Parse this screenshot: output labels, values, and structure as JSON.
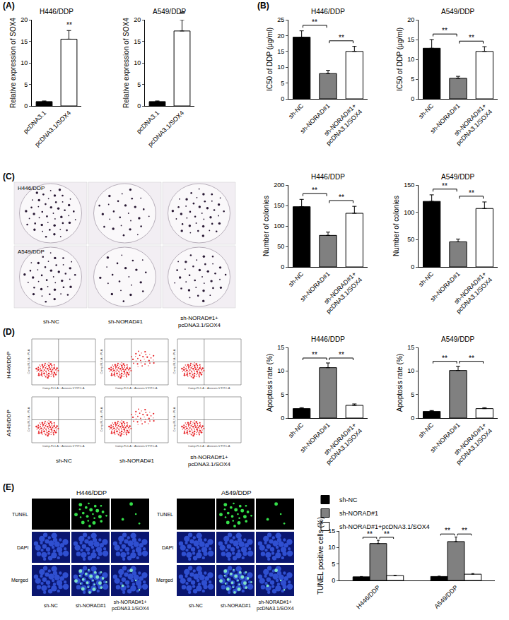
{
  "chart_data": [
    {
      "type": "bar",
      "title": "H446/DDP",
      "y_label": "Relative expression of SOX4",
      "categories": [
        "pcDNA3.1",
        "pcDNA3.1/SOX4"
      ],
      "values": [
        1.0,
        15.5
      ],
      "errors": [
        0.15,
        2.0
      ],
      "colors": [
        "#000000",
        "#ffffff"
      ],
      "ylim": [
        0,
        20
      ],
      "yticks": [
        0,
        5,
        10,
        15,
        20
      ],
      "significance": [
        {
          "at": 1,
          "label": "**"
        }
      ]
    },
    {
      "type": "bar",
      "title": "A549/DDP",
      "y_label": "Relative expression of SOX4",
      "categories": [
        "pcDNA3.1",
        "pcDNA3.1/SOX4"
      ],
      "values": [
        1.0,
        17.4
      ],
      "errors": [
        0.15,
        2.6
      ],
      "colors": [
        "#000000",
        "#ffffff"
      ],
      "ylim": [
        0,
        20
      ],
      "yticks": [
        0,
        5,
        10,
        15,
        20
      ],
      "significance": [
        {
          "at": 1,
          "label": "**"
        }
      ]
    },
    {
      "type": "bar",
      "title": "H446/DDP",
      "y_label": "IC50 of DDP (μg/ml)",
      "categories": [
        "sh-NC",
        "sh-NORAD#1",
        "sh-NORAD#1+pcDNA3.1/SOX4"
      ],
      "values": [
        19.5,
        8.0,
        15.0
      ],
      "errors": [
        2.0,
        1.0,
        1.6
      ],
      "colors": [
        "#000000",
        "#808080",
        "#ffffff"
      ],
      "ylim": [
        0,
        25
      ],
      "yticks": [
        0,
        5,
        10,
        15,
        20,
        25
      ],
      "significance": [
        {
          "from": 0,
          "to": 1,
          "label": "**"
        },
        {
          "from": 1,
          "to": 2,
          "label": "**"
        }
      ]
    },
    {
      "type": "bar",
      "title": "A549/DDP",
      "y_label": "IC50 of DDP (μg/ml)",
      "categories": [
        "sh-NC",
        "sh-NORAD#1",
        "sh-NORAD#1+pcDNA3.1/SOX4"
      ],
      "values": [
        12.8,
        5.2,
        12.0
      ],
      "errors": [
        2.2,
        0.5,
        1.2
      ],
      "colors": [
        "#000000",
        "#808080",
        "#ffffff"
      ],
      "ylim": [
        0,
        20
      ],
      "yticks": [
        0,
        5,
        10,
        15,
        20
      ],
      "significance": [
        {
          "from": 0,
          "to": 1,
          "label": "**"
        },
        {
          "from": 1,
          "to": 2,
          "label": "**"
        }
      ]
    },
    {
      "type": "bar",
      "title": "H446/DDP",
      "y_label": "Number of colonies",
      "categories": [
        "sh-NC",
        "sh-NORAD#1",
        "sh-NORAD#1+pcDNA3.1/SOX4"
      ],
      "values": [
        147,
        77,
        131
      ],
      "errors": [
        18,
        8,
        17
      ],
      "colors": [
        "#000000",
        "#808080",
        "#ffffff"
      ],
      "ylim": [
        0,
        200
      ],
      "yticks": [
        0,
        50,
        100,
        150,
        200
      ],
      "significance": [
        {
          "from": 0,
          "to": 1,
          "label": "**"
        },
        {
          "from": 1,
          "to": 2,
          "label": "**"
        }
      ]
    },
    {
      "type": "bar",
      "title": "A549/DDP",
      "y_label": "Number of colonies",
      "categories": [
        "sh-NC",
        "sh-NORAD#1",
        "sh-NORAD#1+pcDNA3.1/SOX4"
      ],
      "values": [
        120,
        46,
        107
      ],
      "errors": [
        12,
        5,
        12
      ],
      "colors": [
        "#000000",
        "#808080",
        "#ffffff"
      ],
      "ylim": [
        0,
        150
      ],
      "yticks": [
        0,
        50,
        100,
        150
      ],
      "significance": [
        {
          "from": 0,
          "to": 1,
          "label": "**"
        },
        {
          "from": 1,
          "to": 2,
          "label": "**"
        }
      ]
    },
    {
      "type": "bar",
      "title": "H446/DDP",
      "y_label": "Apoptosis rate (%)",
      "categories": [
        "sh-NC",
        "sh-NORAD#1",
        "sh-NORAD#1+pcDNA3.1/SOX4"
      ],
      "values": [
        2.0,
        10.7,
        2.7
      ],
      "errors": [
        0.2,
        1.0,
        0.3
      ],
      "colors": [
        "#000000",
        "#808080",
        "#ffffff"
      ],
      "ylim": [
        0,
        15
      ],
      "yticks": [
        0,
        5,
        10,
        15
      ],
      "significance": [
        {
          "from": 0,
          "to": 1,
          "label": "**"
        },
        {
          "from": 1,
          "to": 2,
          "label": "**"
        }
      ]
    },
    {
      "type": "bar",
      "title": "A549/DDP",
      "y_label": "Apoptosis rate (%)",
      "categories": [
        "sh-NC",
        "sh-NORAD#1",
        "sh-NORAD#1+pcDNA3.1/SOX4"
      ],
      "values": [
        1.4,
        10.1,
        2.0
      ],
      "errors": [
        0.2,
        0.9,
        0.2
      ],
      "colors": [
        "#000000",
        "#808080",
        "#ffffff"
      ],
      "ylim": [
        0,
        15
      ],
      "yticks": [
        0,
        5,
        10,
        15
      ],
      "significance": [
        {
          "from": 0,
          "to": 1,
          "label": "**"
        },
        {
          "from": 1,
          "to": 2,
          "label": "**"
        }
      ]
    },
    {
      "type": "bar",
      "y_label": "TUNEL positive cells (%)",
      "categories": [
        "H446/DDP",
        "A549/DDP"
      ],
      "series": [
        {
          "name": "sh-NC",
          "color": "#000000",
          "values": [
            1.1,
            1.2
          ],
          "errors": [
            0.1,
            0.1
          ]
        },
        {
          "name": "sh-NORAD#1",
          "color": "#808080",
          "values": [
            11.2,
            11.8
          ],
          "errors": [
            1.0,
            1.4
          ]
        },
        {
          "name": "sh-NORAD#1+pcDNA3.1/SOX4",
          "color": "#ffffff",
          "values": [
            1.5,
            1.9
          ],
          "errors": [
            0.1,
            0.2
          ]
        }
      ],
      "ylim": [
        0,
        15
      ],
      "yticks": [
        0,
        5,
        10,
        15
      ],
      "legend": "top left",
      "significance": [
        {
          "group": 0,
          "from": 0,
          "to": 1,
          "label": "**"
        },
        {
          "group": 0,
          "from": 1,
          "to": 2,
          "label": "**"
        },
        {
          "group": 1,
          "from": 0,
          "to": 1,
          "label": "**"
        },
        {
          "group": 1,
          "from": 1,
          "to": 2,
          "label": "**"
        }
      ]
    }
  ],
  "panel_labels": [
    "(A)",
    "(B)",
    "(C)",
    "(D)",
    "(E)"
  ],
  "colony_images": {
    "rows": [
      "H446/DDP",
      "A549/DDP"
    ],
    "columns": [
      "sh-NC",
      "sh-NORAD#1",
      "sh-NORAD#1+pcDNA3.1/SOX4"
    ]
  },
  "flow_images": {
    "rows": [
      "H446/DDP",
      "A549/DDP"
    ],
    "columns": [
      "sh-NC",
      "sh-NORAD#1",
      "sh-NORAD#1+pcDNA3.1/SOX4"
    ],
    "x_label": "Comp-FL1-A :: Annexin-V FITC-A",
    "y_label": "Comp-FL3-A :: PI-A"
  },
  "tunel_images": {
    "groups": [
      "H446/DDP",
      "A549/DDP"
    ],
    "rows": [
      "TUNEL",
      "DAPI",
      "Merged"
    ],
    "columns": [
      "sh-NC",
      "sh-NORAD#1",
      "sh-NORAD#1+pcDNA3.1/SOX4"
    ]
  }
}
